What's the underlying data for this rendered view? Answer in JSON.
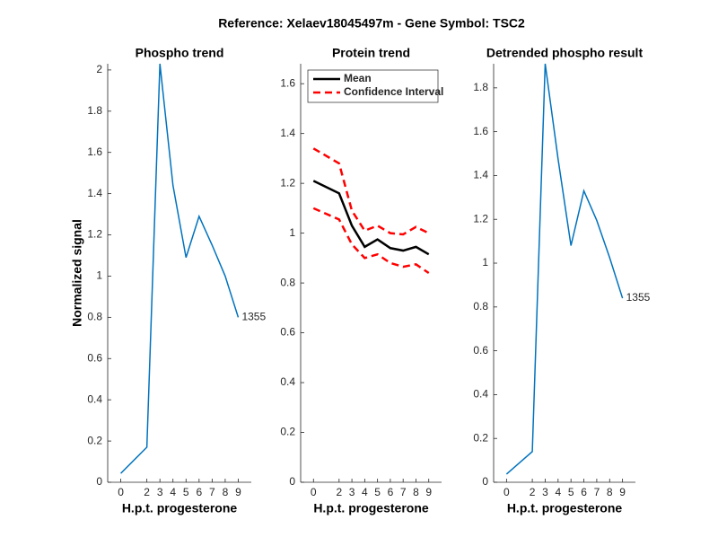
{
  "title": "Reference:  Xelaev18045497m - Gene Symbol:  TSC2",
  "chart_data": [
    {
      "type": "line",
      "title": "Phospho trend",
      "xlabel": "H.p.t. progesterone",
      "ylabel": "Normalized signal",
      "x": [
        0,
        2,
        3,
        4,
        5,
        6,
        7,
        8,
        9
      ],
      "values": [
        0.043,
        0.17,
        2.03,
        1.44,
        1.09,
        1.29,
        1.15,
        1.0,
        0.8
      ],
      "color": "#0072bd",
      "end_label": "1355",
      "xlim": [
        -1,
        10
      ],
      "xticks": [
        0,
        2,
        3,
        4,
        5,
        6,
        7,
        8,
        9
      ],
      "ylim": [
        0,
        2.03
      ],
      "yticks": [
        0,
        0.2,
        0.4,
        0.6,
        0.8,
        1,
        1.2,
        1.4,
        1.6,
        1.8,
        2
      ]
    },
    {
      "type": "line",
      "title": "Protein trend",
      "xlabel": "H.p.t. progesterone",
      "x": [
        0,
        2,
        3,
        4,
        5,
        6,
        7,
        8,
        9
      ],
      "series": [
        {
          "name": "Mean",
          "color": "#000000",
          "style": "solid",
          "values": [
            1.21,
            1.16,
            1.03,
            0.945,
            0.975,
            0.94,
            0.93,
            0.945,
            0.915
          ]
        },
        {
          "name": "Confidence Interval",
          "color": "#ff0000",
          "style": "dashed",
          "values": [
            1.34,
            1.28,
            1.09,
            1.01,
            1.03,
            1.0,
            0.995,
            1.025,
            1.0
          ]
        },
        {
          "color": "#ff0000",
          "style": "dashed",
          "values": [
            1.1,
            1.055,
            0.955,
            0.9,
            0.915,
            0.88,
            0.865,
            0.875,
            0.84
          ]
        }
      ],
      "legend": "northwest",
      "xlim": [
        -1,
        10
      ],
      "xticks": [
        0,
        2,
        3,
        4,
        5,
        6,
        7,
        8,
        9
      ],
      "ylim": [
        0,
        1.68
      ],
      "yticks": [
        0,
        0.2,
        0.4,
        0.6,
        0.8,
        1,
        1.2,
        1.4,
        1.6
      ]
    },
    {
      "type": "line",
      "title": "Detrended phospho result",
      "xlabel": "H.p.t. progesterone",
      "x": [
        0,
        2,
        3,
        4,
        5,
        6,
        7,
        8,
        9
      ],
      "values": [
        0.037,
        0.14,
        1.91,
        1.475,
        1.08,
        1.33,
        1.195,
        1.025,
        0.84
      ],
      "color": "#0072bd",
      "end_label": "1355",
      "xlim": [
        -1,
        10
      ],
      "xticks": [
        0,
        2,
        3,
        4,
        5,
        6,
        7,
        8,
        9
      ],
      "ylim": [
        0,
        1.91
      ],
      "yticks": [
        0,
        0.2,
        0.4,
        0.6,
        0.8,
        1,
        1.2,
        1.4,
        1.6,
        1.8
      ]
    }
  ]
}
